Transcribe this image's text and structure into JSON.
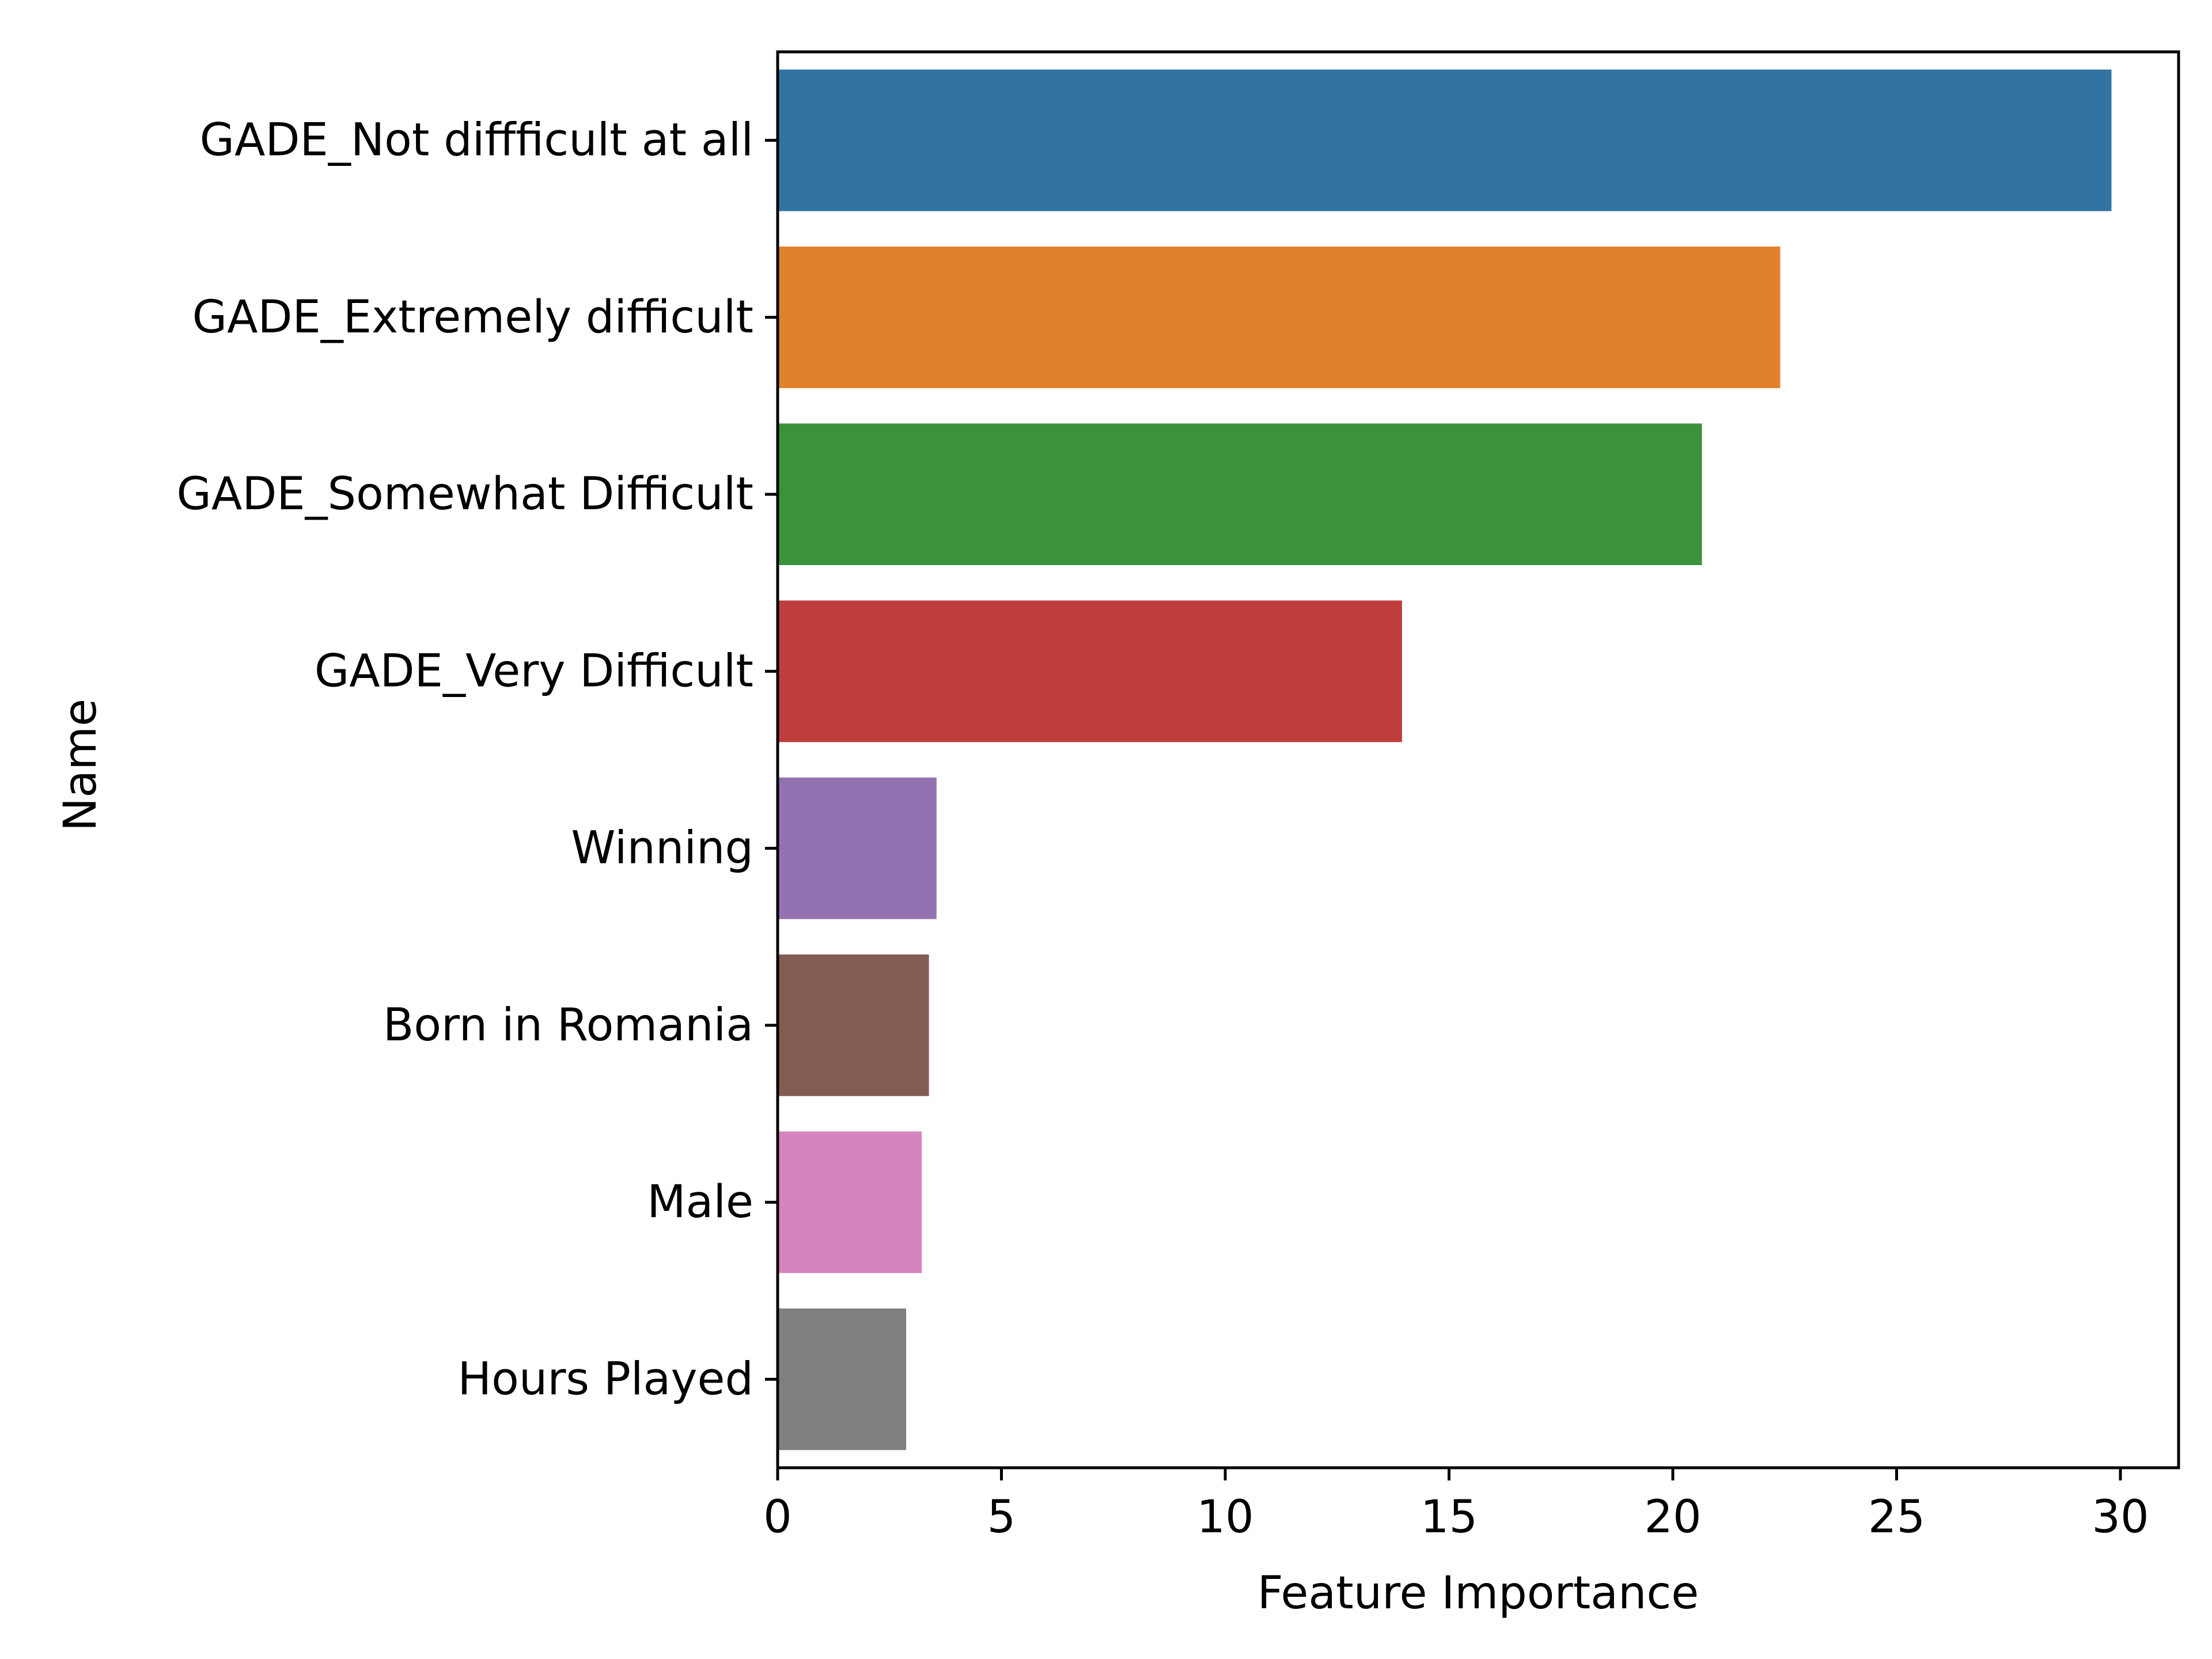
{
  "chart_data": {
    "type": "bar",
    "orientation": "horizontal",
    "categories": [
      "GADE_Not diffficult at all",
      "GADE_Extremely difficult",
      "GADE_Somewhat Difficult",
      "GADE_Very Difficult",
      "Winning",
      "Born in Romania",
      "Male",
      "Hours Played"
    ],
    "values": [
      29.8,
      22.4,
      20.65,
      13.95,
      3.55,
      3.38,
      3.22,
      2.87
    ],
    "colors": [
      "#3274a1",
      "#e1812c",
      "#3a923a",
      "#c03d3e",
      "#9372b2",
      "#845b53",
      "#d684bd",
      "#7f7f7f"
    ],
    "xlabel": "Feature Importance",
    "ylabel": "Name",
    "xlim": [
      0,
      31.3
    ],
    "xticks": [
      0,
      5,
      10,
      15,
      20,
      25,
      30
    ],
    "grid": false,
    "legend": "none"
  }
}
